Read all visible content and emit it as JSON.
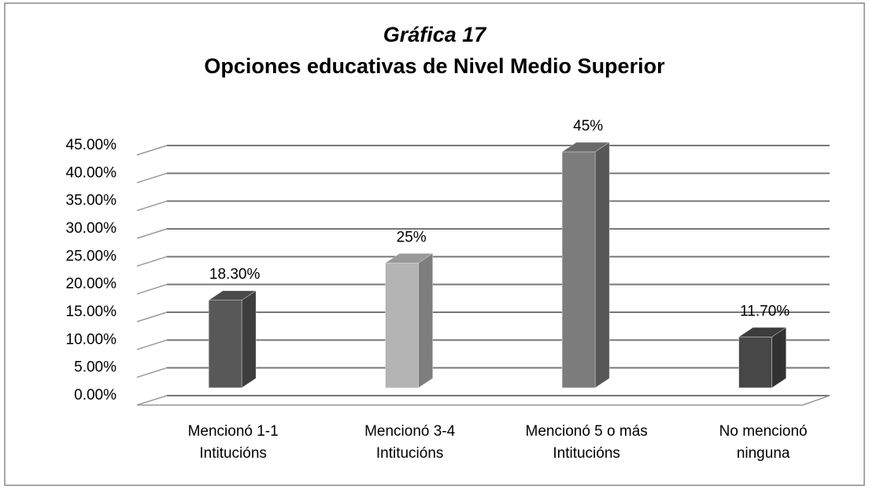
{
  "chart_data": {
    "type": "bar3d",
    "title": "Gráfica 17",
    "subtitle": "Opciones educativas de Nivel Medio Superior",
    "categories": [
      "Mencionó 1-1 Intitucións",
      "Mencionó 3-4 Intitucións",
      "Mencionó 5 o más Intitucións",
      "No mencionó ninguna"
    ],
    "values": [
      18.3,
      25,
      45,
      11.7
    ],
    "value_labels": [
      "18.30%",
      "25%",
      "45%",
      "11.70%"
    ],
    "colors": [
      "#585858",
      "#b4b4b4",
      "#7c7c7c",
      "#474747"
    ],
    "ylim": [
      0,
      45
    ],
    "yticks": [
      {
        "value": 0,
        "label": "0.00%"
      },
      {
        "value": 5,
        "label": "5.00%"
      },
      {
        "value": 10,
        "label": "10.00%"
      },
      {
        "value": 15,
        "label": "15.00%"
      },
      {
        "value": 20,
        "label": "20.00%"
      },
      {
        "value": 25,
        "label": "25.00%"
      },
      {
        "value": 30,
        "label": "30.00%"
      },
      {
        "value": 35,
        "label": "35.00%"
      },
      {
        "value": 40,
        "label": "40.00%"
      },
      {
        "value": 45,
        "label": "45.00%"
      }
    ],
    "grid": true
  }
}
